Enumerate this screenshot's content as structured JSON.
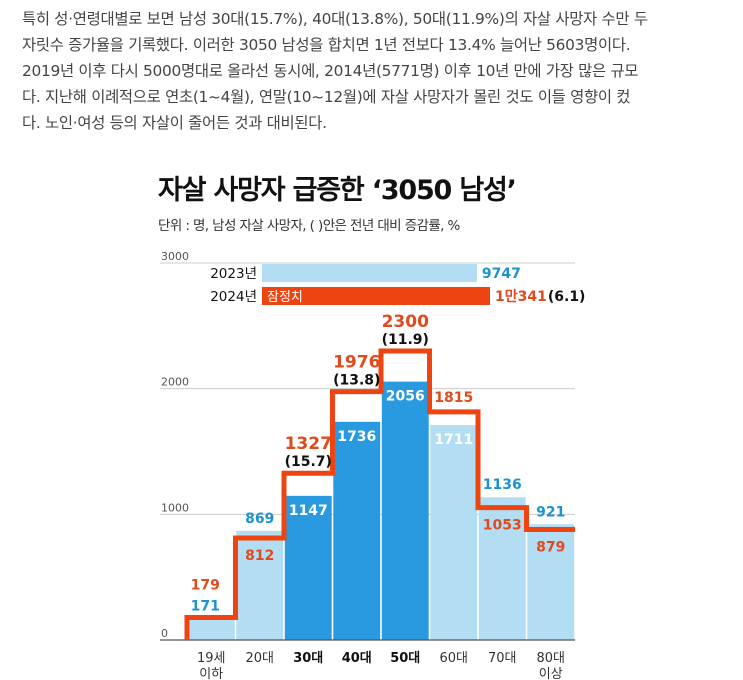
{
  "article": {
    "lines": [
      "특히 성·연령대별로 보면 남성 30대(15.7%), 40대(13.8%), 50대(11.9%)의 자살 사망자 수만 두",
      "자릿수 증가율을 기록했다. 이러한 3050 남성을 합치면 1년 전보다 13.4% 늘어난 5603명이다.",
      "2019년 이후 다시 5000명대로 올라선 동시에, 2014년(5771명) 이후 10년 만에 가장 많은 규모",
      "다. 지난해 이례적으로 연초(1~4월), 연말(10~12월)에 자살 사망자가 몰린 것도 이들 영향이 컸",
      "다. 노인·여성 등의 자살이 줄어든 것과 대비된다."
    ]
  },
  "chart_data": {
    "type": "bar",
    "title": "자살 사망자 급증한 ‘3050 남성’",
    "subtitle": "단위 : 명, 남성 자살 사망자, ( )안은 전년 대비 증감률, %",
    "y_ticks": [
      "0",
      "1000",
      "2000",
      "3000"
    ],
    "ylim": [
      0,
      3000
    ],
    "categories": [
      {
        "line1": "19세",
        "line2": "이하",
        "bold": false
      },
      {
        "line1": "20대",
        "line2": "",
        "bold": false
      },
      {
        "line1": "30대",
        "line2": "",
        "bold": true
      },
      {
        "line1": "40대",
        "line2": "",
        "bold": true
      },
      {
        "line1": "50대",
        "line2": "",
        "bold": true
      },
      {
        "line1": "60대",
        "line2": "",
        "bold": false
      },
      {
        "line1": "70대",
        "line2": "",
        "bold": false
      },
      {
        "line1": "80대",
        "line2": "이상",
        "bold": false
      }
    ],
    "series": [
      {
        "name": "2023년",
        "values": [
          171,
          869,
          1147,
          1736,
          2056,
          1711,
          1136,
          921
        ],
        "labels": [
          "171",
          "869",
          "1147",
          "1736",
          "2056",
          "1711",
          "1136",
          "921"
        ]
      },
      {
        "name": "2024년",
        "values": [
          179,
          812,
          1327,
          1976,
          2300,
          1815,
          1053,
          879
        ],
        "labels": [
          "179",
          "812",
          "1327",
          "1976",
          "2300",
          "1815",
          "1053",
          "879"
        ]
      }
    ],
    "growth_rates": [
      "",
      "",
      "(15.7)",
      "(13.8)",
      "(11.9)",
      "",
      "",
      ""
    ],
    "highlight_indices": [
      2,
      3,
      4
    ],
    "legend": {
      "rows": [
        {
          "year": "2023년",
          "value": 9747,
          "value_label": "9747",
          "change": ""
        },
        {
          "year": "2024년",
          "value": 10341,
          "value_label": "1만341",
          "change": "(6.1)",
          "note": "잠정치"
        }
      ]
    },
    "colors": {
      "bar_light": "#b3ddf3",
      "bar_highlight": "#2a9ae0",
      "line_2024": "#ee4411",
      "label_2023": "#1b93d0",
      "label_2024": "#e04a1c",
      "axis": "#555555",
      "grid": "#cccccc"
    }
  }
}
